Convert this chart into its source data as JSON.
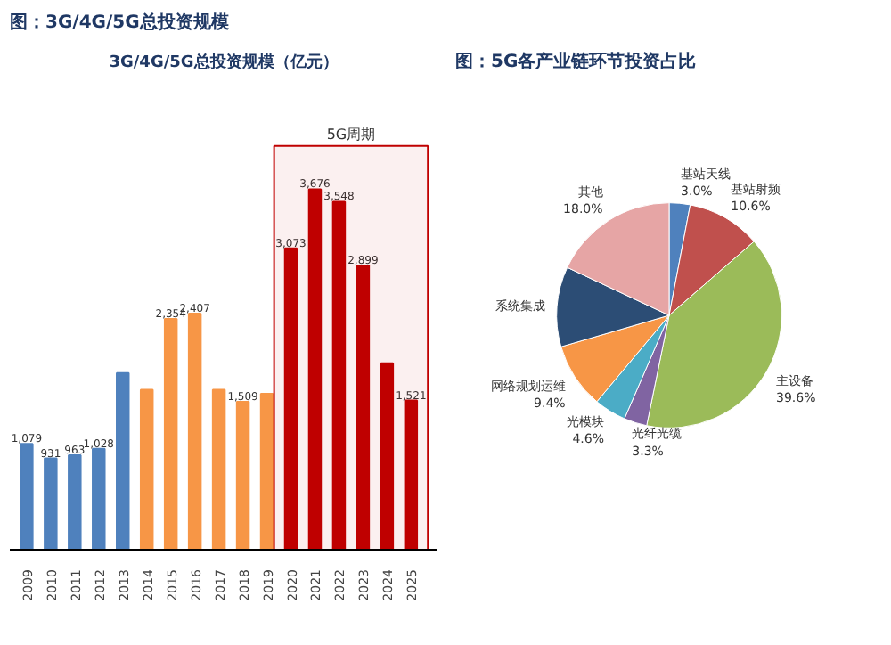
{
  "chart_data": [
    {
      "type": "bar",
      "title": "图：3G/4G/5G总投资规模",
      "subtitle": "3G/4G/5G总投资规模（亿元）",
      "categories": [
        "2009",
        "2010",
        "2011",
        "2012",
        "2013",
        "2014",
        "2015",
        "2016",
        "2017",
        "2018",
        "2019",
        "2020",
        "2021",
        "2022",
        "2023",
        "2024",
        "2025"
      ],
      "values": [
        1079,
        931,
        963,
        1028,
        1800,
        1630,
        2354,
        2407,
        1630,
        1509,
        1590,
        3073,
        3676,
        3548,
        2899,
        1900,
        1521
      ],
      "colors": [
        "#4f81bd",
        "#4f81bd",
        "#4f81bd",
        "#4f81bd",
        "#4f81bd",
        "#f79646",
        "#f79646",
        "#f79646",
        "#f79646",
        "#f79646",
        "#f79646",
        "#c00000",
        "#c00000",
        "#c00000",
        "#c00000",
        "#c00000",
        "#c00000"
      ],
      "value_labels": [
        "1,079",
        "931",
        "963",
        "1,028",
        null,
        null,
        "2,354",
        "2,407",
        null,
        "1,509",
        null,
        "3,073",
        "3,676",
        "3,548",
        "2,899",
        null,
        "1,521"
      ],
      "bands": [
        {
          "axis": "x",
          "from": "2020",
          "to": "2025",
          "label": "5G周期",
          "color": "#c00000"
        }
      ]
    },
    {
      "type": "pie",
      "title": "图：5G各产业链环节投资占比",
      "categories": [
        "基站天线",
        "基站射频",
        "主设备",
        "光纤光缆",
        "光模块",
        "网络规划运维",
        "系统集成",
        "其他"
      ],
      "values": [
        3.0,
        10.6,
        39.6,
        3.3,
        4.6,
        9.4,
        11.5,
        18.0
      ],
      "colors": [
        "#4f81bd",
        "#c0504d",
        "#9bbb59",
        "#8064a2",
        "#4bacc6",
        "#f79646",
        "#2c4d75",
        "#e6a5a5"
      ],
      "value_labels": [
        "3.0%",
        "10.6%",
        "39.6%",
        "3.3%",
        "4.6%",
        "9.4%",
        null,
        "18.0%"
      ]
    }
  ]
}
